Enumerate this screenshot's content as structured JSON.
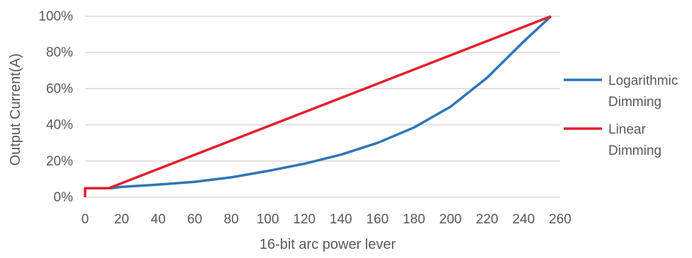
{
  "chart_data": {
    "type": "line",
    "title": "",
    "xlabel": "16-bit arc power lever",
    "ylabel": "Output Current(A)",
    "xlim": [
      0,
      260
    ],
    "ylim": [
      0,
      100
    ],
    "x_ticks": [
      "0",
      "20",
      "40",
      "60",
      "80",
      "100",
      "120",
      "140",
      "160",
      "180",
      "200",
      "220",
      "240",
      "260"
    ],
    "y_ticks": [
      "0%",
      "20%",
      "40%",
      "60%",
      "80%",
      "100%"
    ],
    "grid": "horizontal",
    "legend_position": "right",
    "series": [
      {
        "name": "Logarithmic Dimming",
        "legend_lines": [
          "Logarithmic",
          "Dimming"
        ],
        "color": "#2e75b6",
        "points": [
          [
            0,
            5
          ],
          [
            14,
            5
          ],
          [
            20,
            5.7
          ],
          [
            40,
            7
          ],
          [
            60,
            8.5
          ],
          [
            80,
            11
          ],
          [
            100,
            14.5
          ],
          [
            120,
            18.5
          ],
          [
            140,
            23.5
          ],
          [
            160,
            30
          ],
          [
            180,
            38.5
          ],
          [
            200,
            50
          ],
          [
            220,
            66
          ],
          [
            240,
            86
          ],
          [
            255,
            100
          ]
        ]
      },
      {
        "name": "Linear Dimming",
        "legend_lines": [
          "Linear",
          "Dimming"
        ],
        "color": "#e0202e",
        "points": [
          [
            0,
            0
          ],
          [
            0,
            5
          ],
          [
            13,
            5
          ],
          [
            255,
            100
          ]
        ]
      }
    ]
  }
}
